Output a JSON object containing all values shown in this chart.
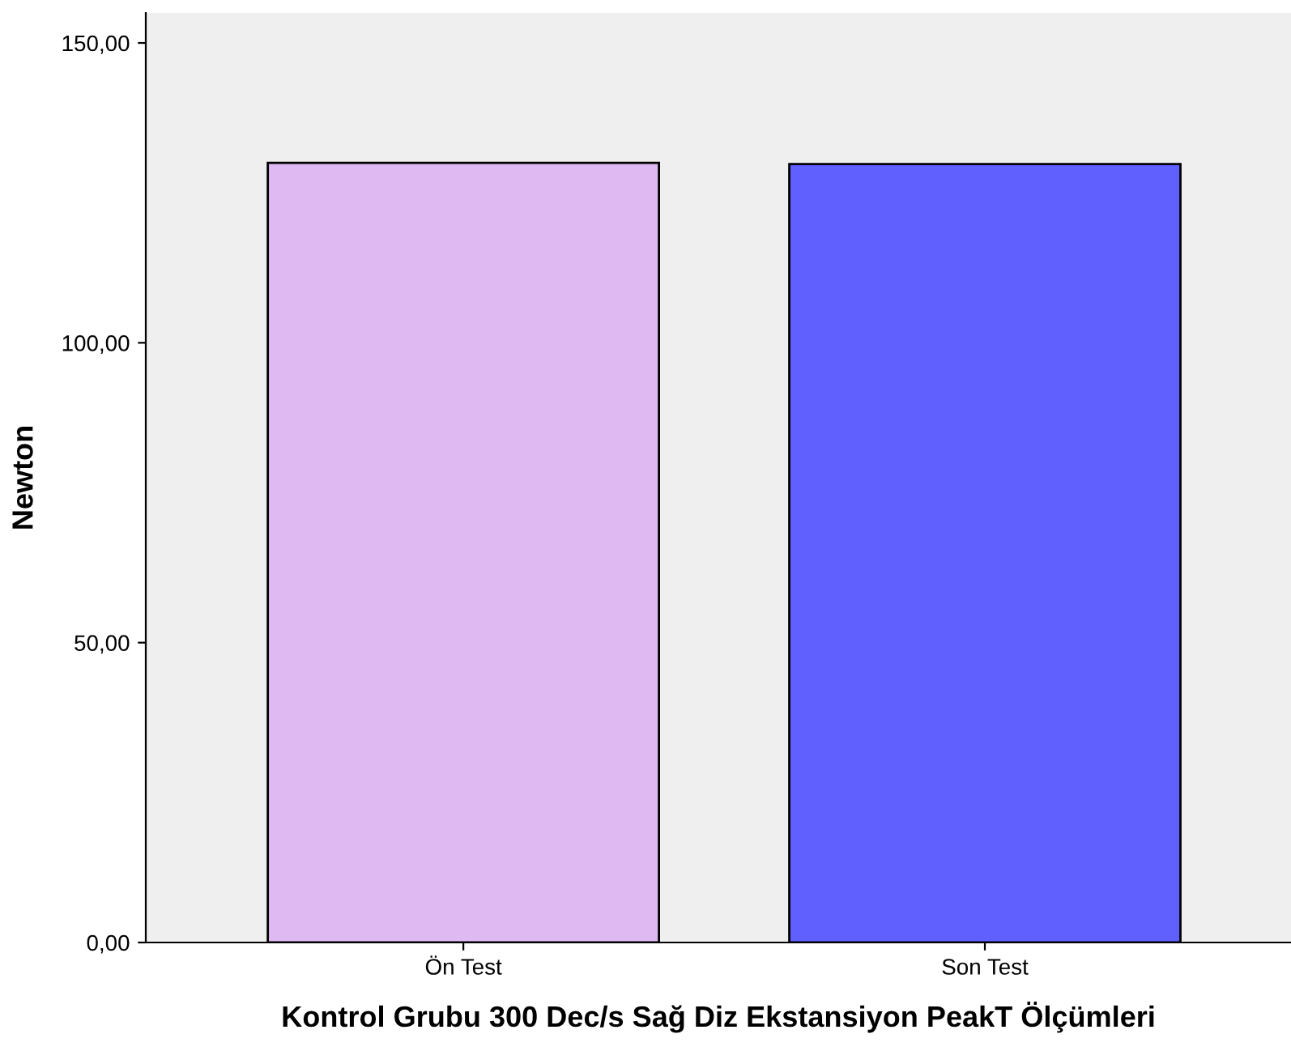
{
  "chart_data": {
    "type": "bar",
    "xlabel": "Kontrol Grubu 300 Dec/s Sağ Diz Ekstansiyon PeakT Ölçümleri",
    "ylabel": "Newton",
    "categories": [
      "Ön Test",
      "Son Test"
    ],
    "values": [
      130.0,
      129.8
    ],
    "colors": [
      "#dfb9f2",
      "#5f60ff"
    ],
    "ylim": [
      0,
      155
    ],
    "yticks": [
      {
        "value": 0,
        "label": "0,00"
      },
      {
        "value": 50,
        "label": "50,00"
      },
      {
        "value": 100,
        "label": "100,00"
      },
      {
        "value": 150,
        "label": "150,00"
      }
    ],
    "grid": false,
    "legend": false
  }
}
